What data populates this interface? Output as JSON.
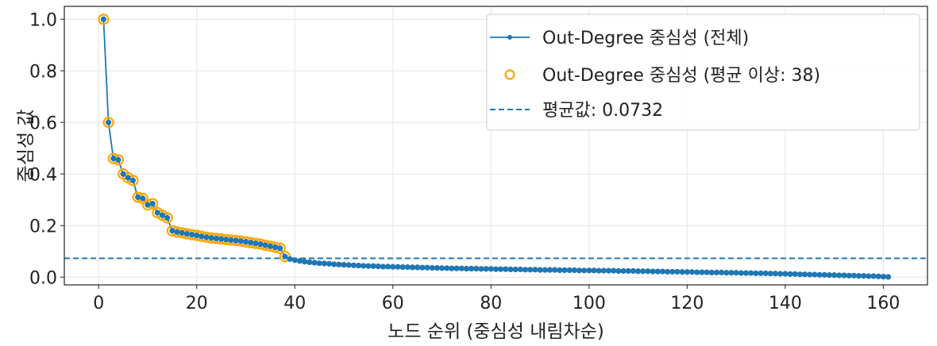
{
  "chart_data": {
    "type": "line",
    "title": "",
    "xlabel": "노드 순위 (중심성 내림차순)",
    "ylabel": "중심성 값",
    "xlim": [
      -7,
      169
    ],
    "ylim": [
      -0.03,
      1.05
    ],
    "xticks": [
      0,
      20,
      40,
      60,
      80,
      100,
      120,
      140,
      160
    ],
    "xtick_labels": [
      "0",
      "20",
      "40",
      "60",
      "80",
      "100",
      "120",
      "140",
      "160"
    ],
    "yticks": [
      0.0,
      0.2,
      0.4,
      0.6,
      0.8,
      1.0
    ],
    "ytick_labels": [
      "0.0",
      "0.2",
      "0.4",
      "0.6",
      "0.8",
      "1.0"
    ],
    "grid": true,
    "legend_position": "upper right",
    "legend": [
      "Out-Degree 중심성 (전체)",
      "Out-Degree 중심성 (평균 이상: 38)",
      "평균값: 0.0732"
    ],
    "colors": {
      "line": "#1f77b4",
      "highlight": "#ffa500",
      "mean": "#1f77b4"
    },
    "mean_value": 0.0732,
    "above_mean_count": 38,
    "series": [
      {
        "name": "Out-Degree 중심성 (전체)",
        "style": "line+dot",
        "x_start": 1,
        "values": [
          1.0,
          0.6,
          0.46,
          0.455,
          0.4,
          0.385,
          0.375,
          0.31,
          0.305,
          0.28,
          0.285,
          0.25,
          0.24,
          0.23,
          0.18,
          0.175,
          0.172,
          0.168,
          0.165,
          0.162,
          0.158,
          0.155,
          0.152,
          0.15,
          0.148,
          0.146,
          0.144,
          0.142,
          0.14,
          0.137,
          0.134,
          0.131,
          0.128,
          0.124,
          0.12,
          0.116,
          0.112,
          0.08,
          0.07,
          0.066,
          0.063,
          0.06,
          0.058,
          0.056,
          0.054,
          0.053,
          0.052,
          0.05,
          0.049,
          0.048,
          0.047,
          0.046,
          0.045,
          0.044,
          0.043,
          0.043,
          0.042,
          0.041,
          0.041,
          0.04,
          0.04,
          0.039,
          0.039,
          0.038,
          0.038,
          0.037,
          0.037,
          0.036,
          0.036,
          0.035,
          0.035,
          0.034,
          0.034,
          0.034,
          0.033,
          0.033,
          0.033,
          0.032,
          0.032,
          0.032,
          0.031,
          0.031,
          0.031,
          0.03,
          0.03,
          0.03,
          0.029,
          0.029,
          0.029,
          0.028,
          0.028,
          0.028,
          0.028,
          0.027,
          0.027,
          0.027,
          0.027,
          0.026,
          0.026,
          0.026,
          0.026,
          0.025,
          0.025,
          0.025,
          0.025,
          0.024,
          0.024,
          0.024,
          0.024,
          0.023,
          0.023,
          0.023,
          0.022,
          0.022,
          0.022,
          0.021,
          0.021,
          0.021,
          0.02,
          0.02,
          0.02,
          0.019,
          0.019,
          0.019,
          0.018,
          0.018,
          0.018,
          0.017,
          0.017,
          0.017,
          0.016,
          0.016,
          0.016,
          0.015,
          0.015,
          0.015,
          0.014,
          0.014,
          0.013,
          0.013,
          0.012,
          0.012,
          0.011,
          0.011,
          0.01,
          0.01,
          0.009,
          0.009,
          0.008,
          0.008,
          0.007,
          0.007,
          0.006,
          0.006,
          0.005,
          0.005,
          0.004,
          0.004,
          0.003,
          0.002,
          0.001
        ]
      },
      {
        "name": "Out-Degree 중심성 (평균 이상: 38)",
        "style": "hollow-circle",
        "x_range": [
          1,
          38
        ]
      },
      {
        "name": "평균값: 0.0732",
        "style": "dashed-hline",
        "y": 0.0732
      }
    ]
  }
}
